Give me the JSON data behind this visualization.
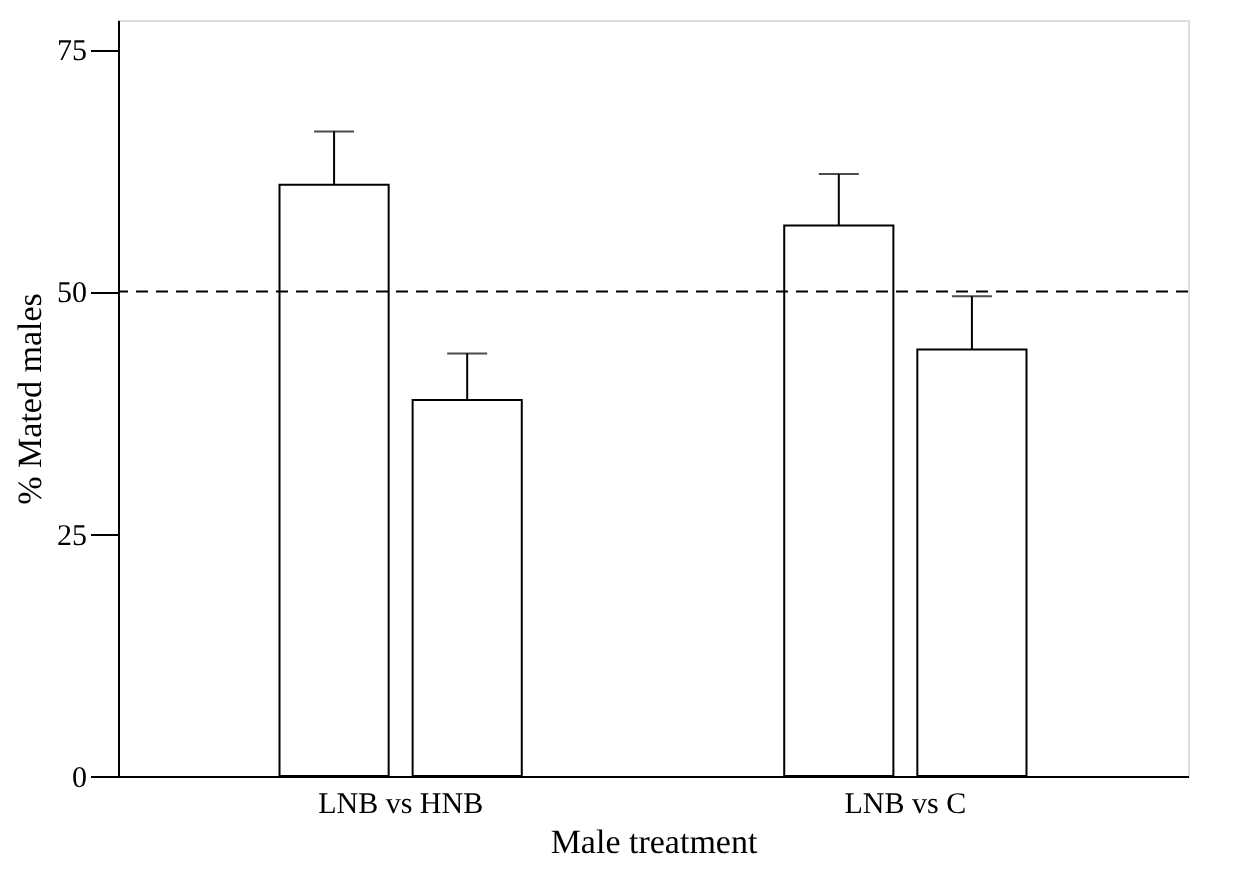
{
  "chart_data": {
    "type": "bar",
    "xlabel": "Male treatment",
    "ylabel": "% Mated males",
    "categories": [
      "LNB vs HNB",
      "LNB vs C"
    ],
    "series": [
      {
        "color": "#ffffff",
        "values": [
          61,
          56.8
        ],
        "errors": [
          [
            61,
            66.5
          ],
          [
            56.8,
            62.1
          ]
        ]
      },
      {
        "color": "#ffffff",
        "values": [
          38.8,
          44
        ],
        "errors": [
          [
            38.8,
            43.6
          ],
          [
            44,
            49.5
          ]
        ]
      }
    ],
    "ylim": [
      0,
      78
    ],
    "yticks": [
      0,
      25,
      50,
      75
    ],
    "grid": false,
    "ref_lines": [
      {
        "axis": "y",
        "value": 50,
        "label": null,
        "line_style": "dashed",
        "color": "#000000"
      }
    ]
  }
}
